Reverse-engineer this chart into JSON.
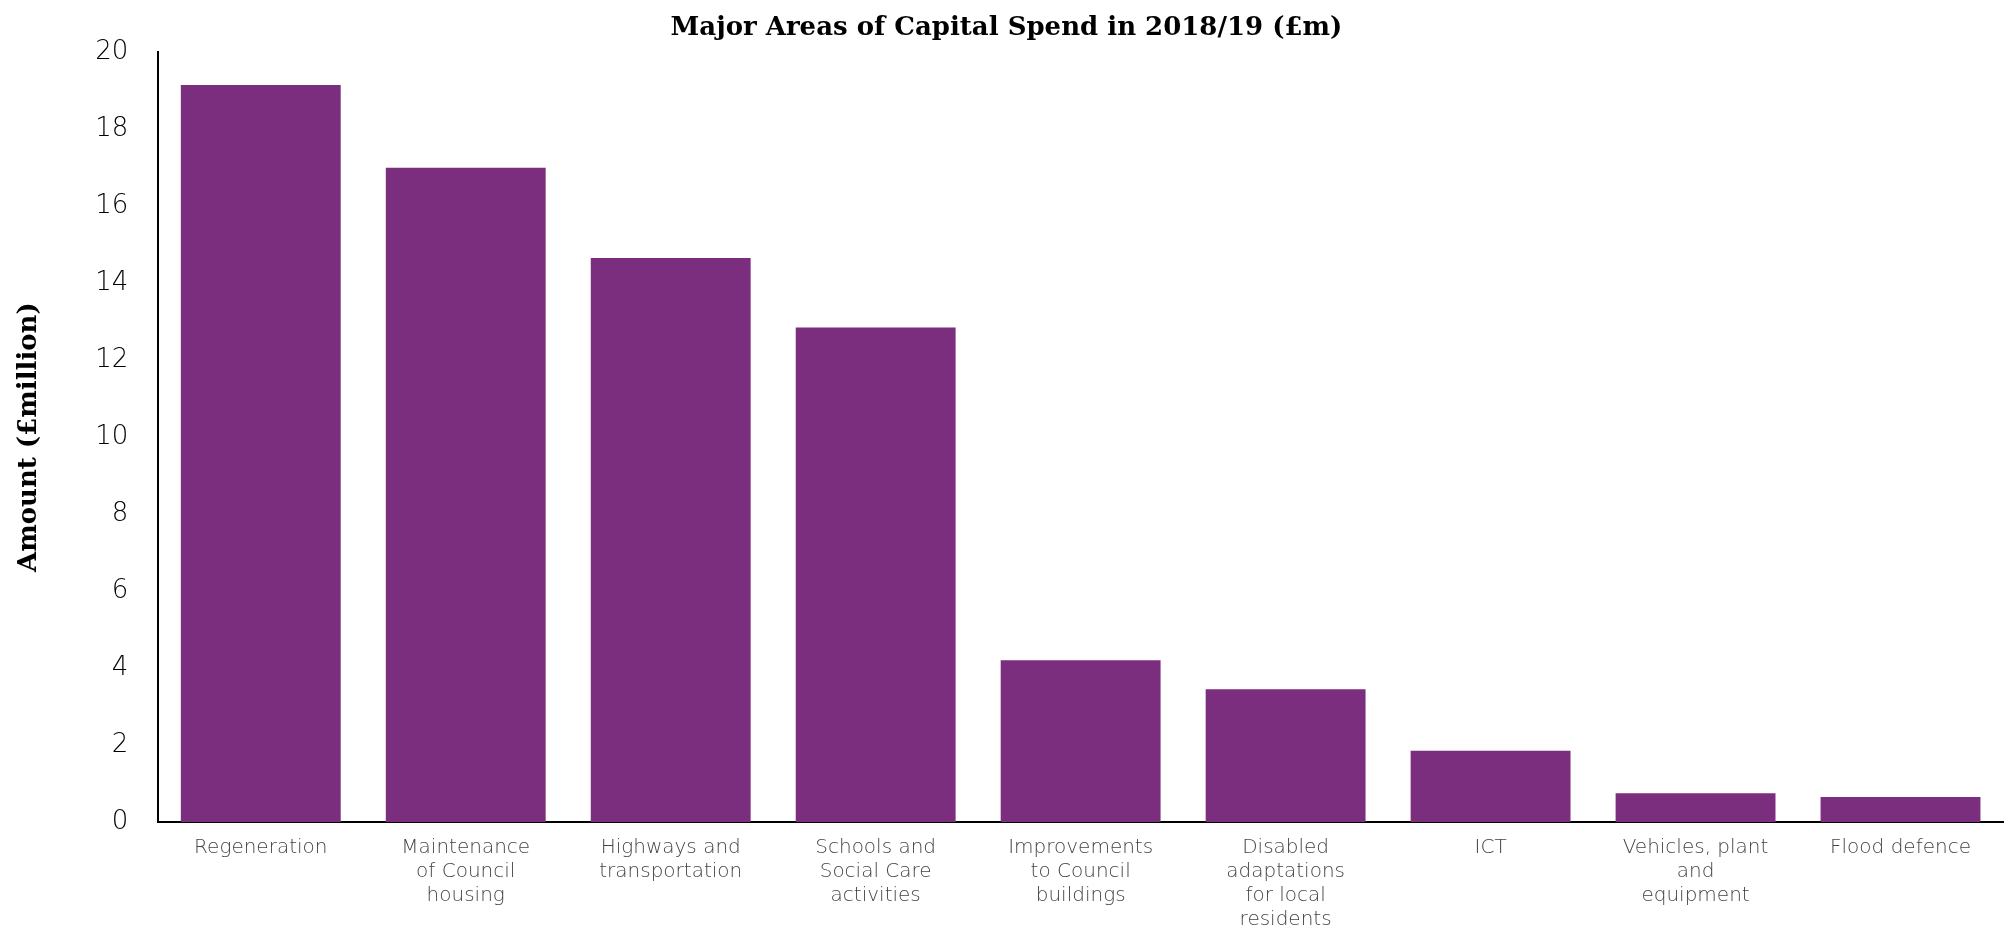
{
  "chart_data": {
    "type": "bar",
    "title": "Major Areas of Capital Spend in 2018/19 (£m)",
    "ylabel": "Amount (£million)",
    "categories": [
      "Regeneration",
      "Maintenance of Council housing",
      "Highways and transportation",
      "Schools and Social Care activities",
      "Improvements to Council buildings",
      "Disabled adaptations for local residents",
      "ICT",
      "Vehicles, plant and equipment",
      "Flood defence"
    ],
    "values": [
      19.15,
      17.0,
      14.65,
      12.85,
      4.2,
      3.45,
      1.85,
      0.75,
      0.65
    ],
    "color": "#7b2d7e",
    "ylim": [
      0,
      20
    ],
    "yticks": [
      0,
      2,
      4,
      6,
      8,
      10,
      12,
      14,
      16,
      18,
      20
    ],
    "grid": false,
    "legend": false
  }
}
